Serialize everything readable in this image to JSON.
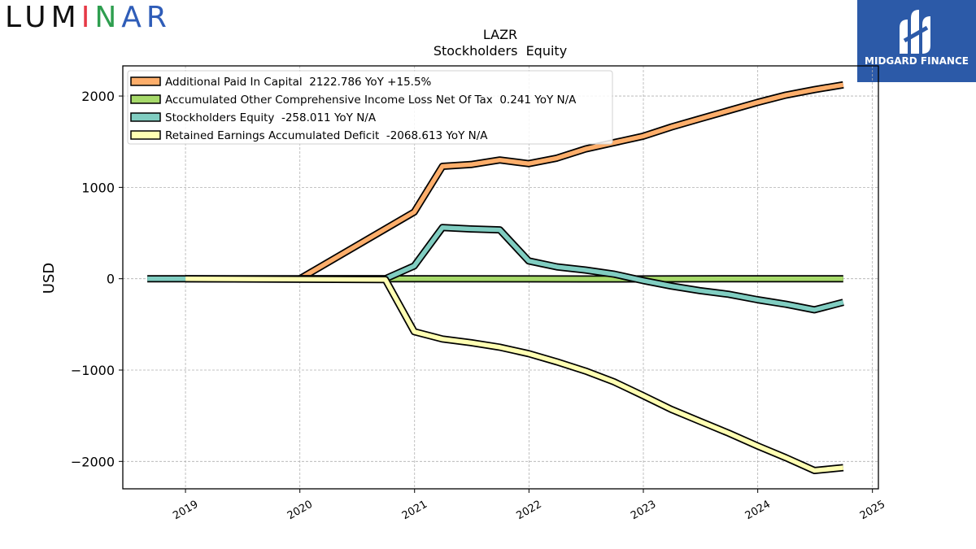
{
  "logos": {
    "left": {
      "parts": [
        "LUM",
        "I",
        "N",
        "AR"
      ]
    },
    "right": {
      "text": "MIDGARD FINANCE"
    }
  },
  "chart_data": {
    "type": "line",
    "title": "LAZR",
    "subtitle": "Stockholders  Equity",
    "xlabel": "",
    "ylabel": "USD",
    "xlim": [
      "2018-06-15",
      "2025-01-20"
    ],
    "ylim": [
      -2300,
      2330
    ],
    "yticks": [
      2000,
      1000,
      0,
      -1000,
      -2000
    ],
    "ytick_labels": [
      "2000",
      "1000",
      "0",
      "−1000",
      "−2000"
    ],
    "xticks": [
      "2019-01-01",
      "2020-01-01",
      "2021-01-01",
      "2022-01-01",
      "2023-01-01",
      "2024-01-01",
      "2025-01-01"
    ],
    "xtick_labels": [
      "2019",
      "2020",
      "2021",
      "2022",
      "2023",
      "2024",
      "2025"
    ],
    "grid": true,
    "legend_position": "top-left",
    "series": [
      {
        "name": "Additional Paid In Capital  2122.786 YoY +15.5%",
        "color": "#fdae6b",
        "points": [
          [
            "2020-01-01",
            0
          ],
          [
            "2020-12-31",
            730
          ],
          [
            "2021-03-31",
            1230
          ],
          [
            "2021-06-30",
            1250
          ],
          [
            "2021-09-30",
            1300
          ],
          [
            "2021-12-31",
            1260
          ],
          [
            "2022-03-31",
            1320
          ],
          [
            "2022-06-30",
            1420
          ],
          [
            "2022-09-30",
            1490
          ],
          [
            "2022-12-31",
            1560
          ],
          [
            "2023-03-31",
            1660
          ],
          [
            "2023-06-30",
            1750
          ],
          [
            "2023-09-30",
            1840
          ],
          [
            "2023-12-31",
            1930
          ],
          [
            "2024-03-31",
            2010
          ],
          [
            "2024-06-30",
            2070
          ],
          [
            "2024-09-30",
            2122.786
          ]
        ]
      },
      {
        "name": "Accumulated Other Comprehensive Income Loss Net Of Tax  0.241 YoY N/A",
        "color": "#a6d96a",
        "points": [
          [
            "2020-01-01",
            0
          ],
          [
            "2020-12-31",
            0
          ],
          [
            "2021-12-31",
            -2
          ],
          [
            "2022-06-30",
            -3
          ],
          [
            "2023-12-31",
            0
          ],
          [
            "2024-09-30",
            0.241
          ]
        ]
      },
      {
        "name": "Stockholders Equity  -258.011 YoY N/A",
        "color": "#80cdc1",
        "points": [
          [
            "2018-09-01",
            0
          ],
          [
            "2020-09-30",
            0
          ],
          [
            "2020-12-31",
            140
          ],
          [
            "2021-03-31",
            560
          ],
          [
            "2021-06-30",
            545
          ],
          [
            "2021-09-30",
            535
          ],
          [
            "2021-12-31",
            195
          ],
          [
            "2022-03-31",
            130
          ],
          [
            "2022-06-30",
            95
          ],
          [
            "2022-09-30",
            50
          ],
          [
            "2022-12-31",
            -20
          ],
          [
            "2023-03-31",
            -80
          ],
          [
            "2023-06-30",
            -130
          ],
          [
            "2023-09-30",
            -170
          ],
          [
            "2023-12-31",
            -230
          ],
          [
            "2024-03-31",
            -280
          ],
          [
            "2024-06-30",
            -340
          ],
          [
            "2024-09-30",
            -258.011
          ]
        ]
      },
      {
        "name": "Retained Earnings Accumulated Deficit  -2068.613 YoY N/A",
        "color": "#ffffb3",
        "points": [
          [
            "2019-01-01",
            0
          ],
          [
            "2020-09-30",
            -10
          ],
          [
            "2020-12-31",
            -580
          ],
          [
            "2021-03-31",
            -660
          ],
          [
            "2021-06-30",
            -700
          ],
          [
            "2021-09-30",
            -750
          ],
          [
            "2021-12-31",
            -820
          ],
          [
            "2022-03-31",
            -910
          ],
          [
            "2022-06-30",
            -1010
          ],
          [
            "2022-09-30",
            -1130
          ],
          [
            "2022-12-31",
            -1280
          ],
          [
            "2023-03-31",
            -1430
          ],
          [
            "2023-06-30",
            -1560
          ],
          [
            "2023-09-30",
            -1690
          ],
          [
            "2023-12-31",
            -1830
          ],
          [
            "2024-03-31",
            -1960
          ],
          [
            "2024-06-30",
            -2100
          ],
          [
            "2024-09-30",
            -2068.613
          ]
        ]
      }
    ]
  }
}
